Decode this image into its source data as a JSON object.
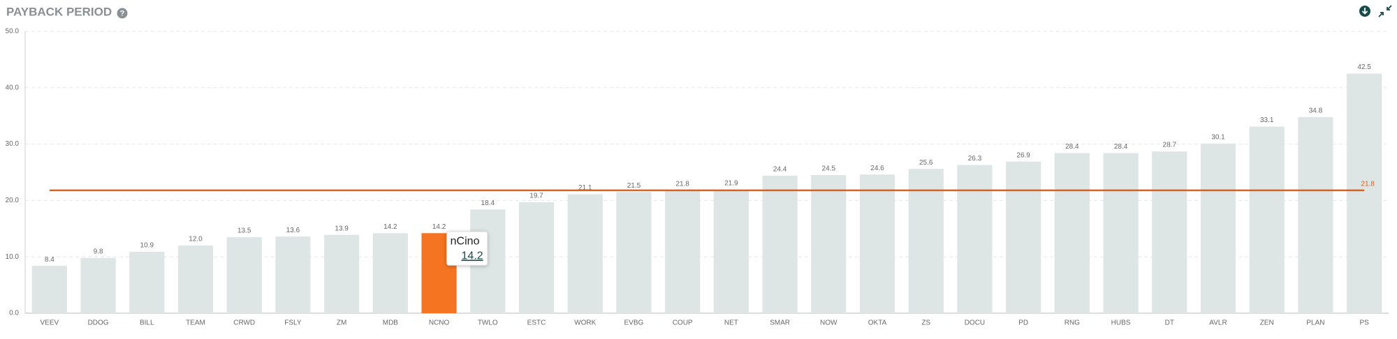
{
  "chart_data": {
    "type": "bar",
    "title": "PAYBACK PERIOD",
    "title_icon": "?",
    "categories": [
      "VEEV",
      "DDOG",
      "BILL",
      "TEAM",
      "CRWD",
      "FSLY",
      "ZM",
      "MDB",
      "NCNO",
      "TWLO",
      "ESTC",
      "WORK",
      "EVBG",
      "COUP",
      "NET",
      "SMAR",
      "NOW",
      "OKTA",
      "ZS",
      "DOCU",
      "PD",
      "RNG",
      "HUBS",
      "DT",
      "AVLR",
      "ZEN",
      "PLAN",
      "PS"
    ],
    "values": [
      8.4,
      9.8,
      10.9,
      12.0,
      13.5,
      13.6,
      13.9,
      14.2,
      14.2,
      18.4,
      19.7,
      21.1,
      21.5,
      21.8,
      21.9,
      24.4,
      24.5,
      24.6,
      25.6,
      26.3,
      26.9,
      28.4,
      28.4,
      28.7,
      30.1,
      33.1,
      34.8,
      42.5
    ],
    "value_labels": [
      "8.4",
      "9.8",
      "10.9",
      "12.0",
      "13.5",
      "13.6",
      "13.9",
      "14.2",
      "14.2",
      "18.4",
      "19.7",
      "21.1",
      "21.5",
      "21.8",
      "21.9",
      "24.4",
      "24.5",
      "24.6",
      "25.6",
      "26.3",
      "26.9",
      "28.4",
      "28.4",
      "28.7",
      "30.1",
      "33.1",
      "34.8",
      "42.5"
    ],
    "color": "#dde5e5",
    "highlight_category": "NCNO",
    "highlight_color": "#f47421",
    "average": {
      "value": 21.8,
      "color": "#d9621e"
    },
    "tooltip": {
      "title": "nCino",
      "value": 14.2
    },
    "ylim": [
      0,
      50
    ],
    "yticks": [
      {
        "value": 0,
        "label": "0.0"
      },
      {
        "value": 10,
        "label": "10.0"
      },
      {
        "value": 20,
        "label": "20.0"
      },
      {
        "value": 30,
        "label": "30.0"
      },
      {
        "value": 40,
        "label": "40.0"
      },
      {
        "value": 50,
        "label": "50.0"
      }
    ],
    "grid": true
  }
}
